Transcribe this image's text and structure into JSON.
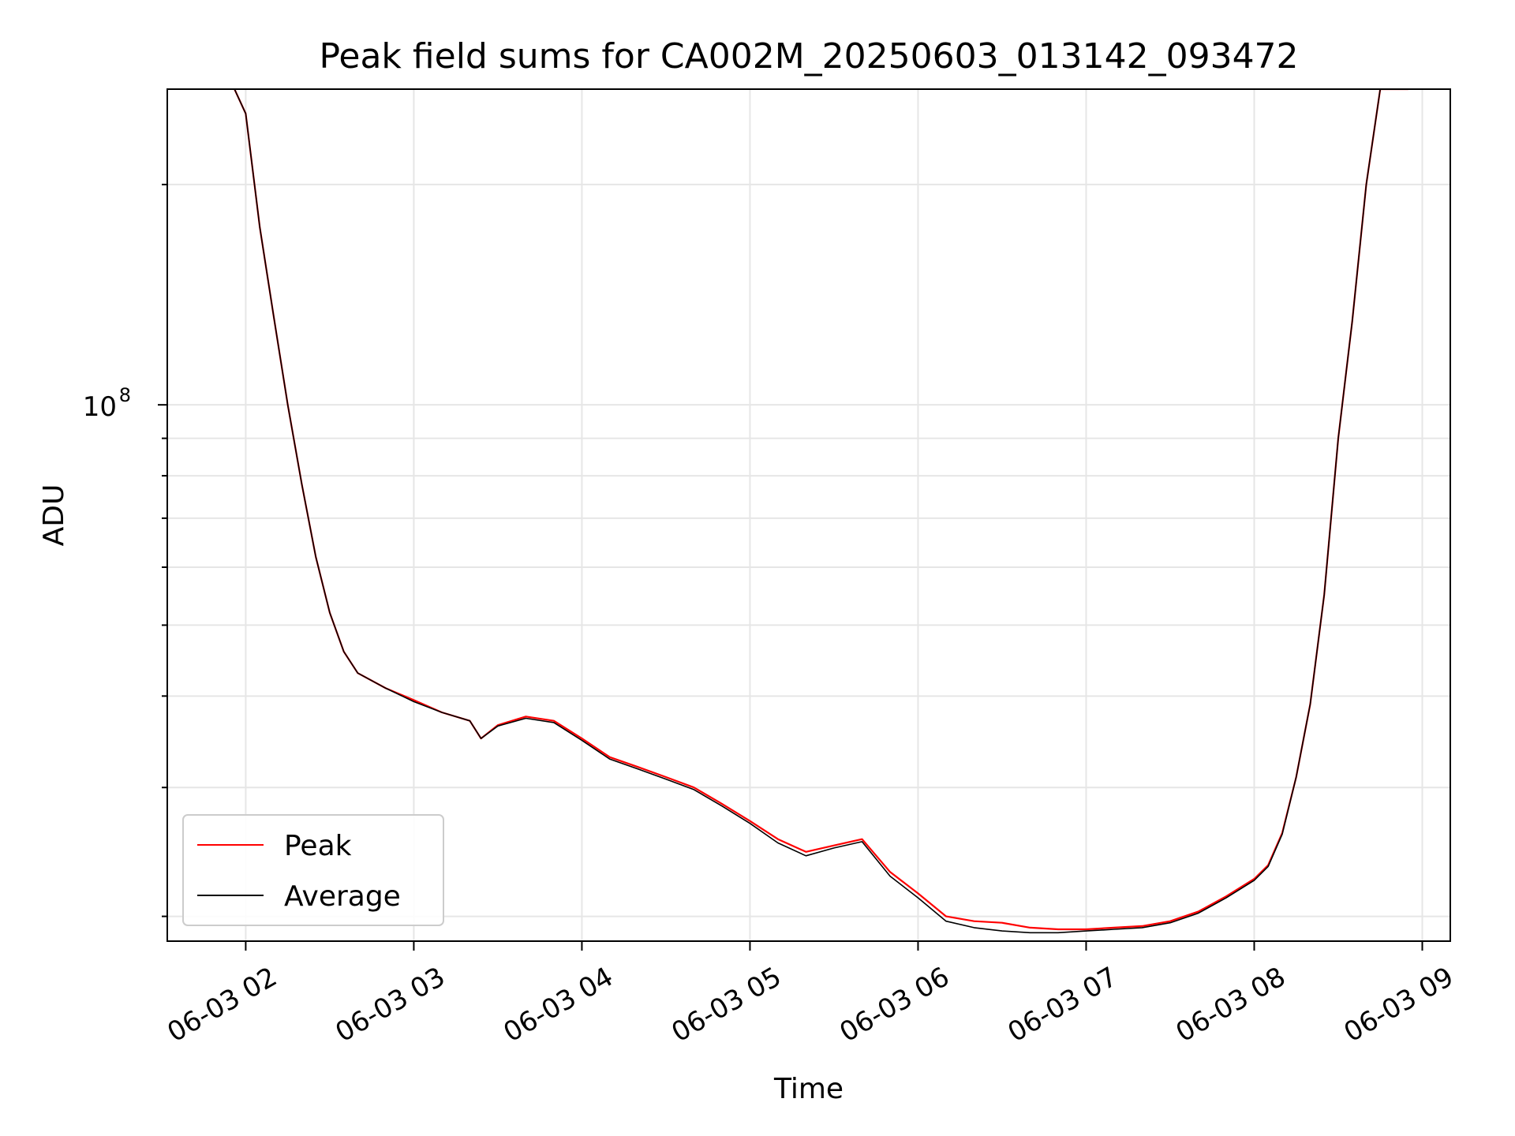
{
  "chart_data": {
    "type": "line",
    "title": "Peak field sums for CA002M_20250603_013142_093472",
    "xlabel": "Time",
    "ylabel": "ADU",
    "x_axis": {
      "type": "time",
      "min": "2025-06-03 01:32",
      "max": "2025-06-03 09:10",
      "ticks": [
        {
          "value": "2025-06-03 02:00",
          "label": "06-03 02"
        },
        {
          "value": "2025-06-03 03:00",
          "label": "06-03 03"
        },
        {
          "value": "2025-06-03 04:00",
          "label": "06-03 04"
        },
        {
          "value": "2025-06-03 05:00",
          "label": "06-03 05"
        },
        {
          "value": "2025-06-03 06:00",
          "label": "06-03 06"
        },
        {
          "value": "2025-06-03 07:00",
          "label": "06-03 07"
        },
        {
          "value": "2025-06-03 08:00",
          "label": "06-03 08"
        },
        {
          "value": "2025-06-03 09:00",
          "label": "06-03 09"
        }
      ]
    },
    "y_axis": {
      "scale": "log",
      "min": 18500000,
      "max": 270000000,
      "major_ticks": [
        {
          "value": 100000000,
          "base": "10",
          "exponent": "8"
        }
      ],
      "minor_ticks": [
        20000000,
        30000000,
        40000000,
        50000000,
        60000000,
        70000000,
        80000000,
        90000000,
        200000000
      ]
    },
    "grid": true,
    "legend": {
      "position": "lower-left"
    },
    "series": [
      {
        "name": "Peak",
        "color": "#ff0000",
        "x": [
          "2025-06-03 01:56",
          "2025-06-03 02:00",
          "2025-06-03 02:05",
          "2025-06-03 02:10",
          "2025-06-03 02:15",
          "2025-06-03 02:20",
          "2025-06-03 02:25",
          "2025-06-03 02:30",
          "2025-06-03 02:35",
          "2025-06-03 02:40",
          "2025-06-03 02:50",
          "2025-06-03 03:00",
          "2025-06-03 03:10",
          "2025-06-03 03:20",
          "2025-06-03 03:24",
          "2025-06-03 03:30",
          "2025-06-03 03:40",
          "2025-06-03 03:50",
          "2025-06-03 04:00",
          "2025-06-03 04:10",
          "2025-06-03 04:20",
          "2025-06-03 04:30",
          "2025-06-03 04:40",
          "2025-06-03 04:50",
          "2025-06-03 05:00",
          "2025-06-03 05:10",
          "2025-06-03 05:20",
          "2025-06-03 05:30",
          "2025-06-03 05:40",
          "2025-06-03 05:50",
          "2025-06-03 06:00",
          "2025-06-03 06:10",
          "2025-06-03 06:20",
          "2025-06-03 06:30",
          "2025-06-03 06:40",
          "2025-06-03 06:50",
          "2025-06-03 07:00",
          "2025-06-03 07:10",
          "2025-06-03 07:20",
          "2025-06-03 07:30",
          "2025-06-03 07:40",
          "2025-06-03 07:50",
          "2025-06-03 08:00",
          "2025-06-03 08:05",
          "2025-06-03 08:10",
          "2025-06-03 08:15",
          "2025-06-03 08:20",
          "2025-06-03 08:25",
          "2025-06-03 08:30",
          "2025-06-03 08:35",
          "2025-06-03 08:40",
          "2025-06-03 08:45",
          "2025-06-03 08:50",
          "2025-06-03 08:55"
        ],
        "y": [
          270000000,
          250000000,
          175000000,
          132000000,
          100000000,
          78000000,
          62000000,
          52000000,
          46000000,
          43000000,
          41000000,
          39500000,
          38000000,
          37000000,
          35000000,
          36500000,
          37500000,
          37000000,
          35000000,
          33000000,
          32000000,
          31000000,
          30000000,
          28500000,
          27000000,
          25500000,
          24500000,
          25000000,
          25500000,
          23000000,
          21500000,
          20000000,
          19700000,
          19600000,
          19300000,
          19200000,
          19200000,
          19300000,
          19400000,
          19700000,
          20300000,
          21300000,
          22500000,
          23500000,
          26000000,
          31000000,
          39000000,
          55000000,
          90000000,
          130000000,
          200000000,
          270000000,
          270000000,
          270000000
        ]
      },
      {
        "name": "Average",
        "color": "#000000",
        "x": [
          "2025-06-03 01:56",
          "2025-06-03 02:00",
          "2025-06-03 02:05",
          "2025-06-03 02:10",
          "2025-06-03 02:15",
          "2025-06-03 02:20",
          "2025-06-03 02:25",
          "2025-06-03 02:30",
          "2025-06-03 02:35",
          "2025-06-03 02:40",
          "2025-06-03 02:50",
          "2025-06-03 03:00",
          "2025-06-03 03:10",
          "2025-06-03 03:20",
          "2025-06-03 03:24",
          "2025-06-03 03:30",
          "2025-06-03 03:40",
          "2025-06-03 03:50",
          "2025-06-03 04:00",
          "2025-06-03 04:10",
          "2025-06-03 04:20",
          "2025-06-03 04:30",
          "2025-06-03 04:40",
          "2025-06-03 04:50",
          "2025-06-03 05:00",
          "2025-06-03 05:10",
          "2025-06-03 05:20",
          "2025-06-03 05:30",
          "2025-06-03 05:40",
          "2025-06-03 05:50",
          "2025-06-03 06:00",
          "2025-06-03 06:10",
          "2025-06-03 06:20",
          "2025-06-03 06:30",
          "2025-06-03 06:40",
          "2025-06-03 06:50",
          "2025-06-03 07:00",
          "2025-06-03 07:10",
          "2025-06-03 07:20",
          "2025-06-03 07:30",
          "2025-06-03 07:40",
          "2025-06-03 07:50",
          "2025-06-03 08:00",
          "2025-06-03 08:05",
          "2025-06-03 08:10",
          "2025-06-03 08:15",
          "2025-06-03 08:20",
          "2025-06-03 08:25",
          "2025-06-03 08:30",
          "2025-06-03 08:35",
          "2025-06-03 08:40",
          "2025-06-03 08:45",
          "2025-06-03 08:50",
          "2025-06-03 08:55"
        ],
        "y": [
          270000000,
          250000000,
          175000000,
          132000000,
          100000000,
          78000000,
          62000000,
          52000000,
          46000000,
          43000000,
          41000000,
          39300000,
          38000000,
          37000000,
          35000000,
          36400000,
          37300000,
          36800000,
          34800000,
          32800000,
          31800000,
          30800000,
          29800000,
          28300000,
          26800000,
          25200000,
          24200000,
          24800000,
          25300000,
          22700000,
          21200000,
          19700000,
          19300000,
          19100000,
          19000000,
          19000000,
          19100000,
          19200000,
          19300000,
          19600000,
          20200000,
          21200000,
          22400000,
          23400000,
          25900000,
          31000000,
          39000000,
          55000000,
          90000000,
          130000000,
          200000000,
          270000000,
          270000000,
          270000000
        ]
      }
    ]
  }
}
